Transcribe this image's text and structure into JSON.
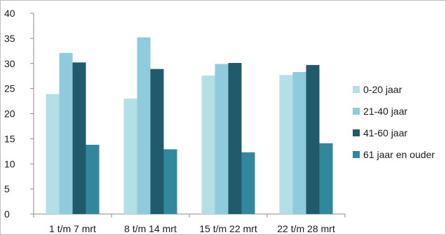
{
  "chart_data": {
    "type": "bar",
    "title": "",
    "xlabel": "",
    "ylabel": "",
    "categories": [
      "1 t/m 7 mrt",
      "8 t/m 14 mrt",
      "15 t/m 22 mrt",
      "22 t/m 28 mrt"
    ],
    "ylim": [
      0,
      40
    ],
    "yticks": [
      0,
      5,
      10,
      15,
      20,
      25,
      30,
      35,
      40
    ],
    "grid": false,
    "legend_position": "right",
    "series": [
      {
        "name": "0-20 jaar",
        "color": "#b5dfe7",
        "values": [
          23.9,
          23.0,
          27.6,
          27.7
        ]
      },
      {
        "name": "21-40 jaar",
        "color": "#8fcbdc",
        "values": [
          32.1,
          35.2,
          29.9,
          28.3
        ]
      },
      {
        "name": "41-60 jaar",
        "color": "#215a6a",
        "values": [
          30.2,
          28.9,
          30.1,
          29.7
        ]
      },
      {
        "name": "61 jaar en ouder",
        "color": "#31879c",
        "values": [
          13.8,
          12.9,
          12.3,
          14.1
        ]
      }
    ]
  }
}
